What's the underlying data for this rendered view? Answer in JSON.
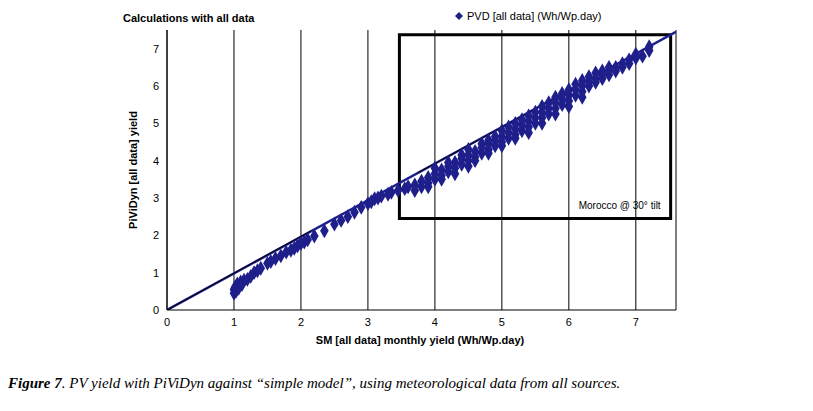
{
  "chart_data": {
    "type": "scatter",
    "title": "Calculations with all data",
    "x_label": "SM [all data] monthly yield (Wh/Wp.day)",
    "y_label": "PiViDyn [all data] yield",
    "caption": "Figure 7. PV yield with PiViDyn against “simple model”, using meteorological data from all sources.",
    "xlim": [
      0,
      7.6
    ],
    "ylim": [
      0,
      7.5
    ],
    "xticks": [
      0,
      1,
      2,
      3,
      4,
      5,
      6,
      7
    ],
    "yticks": [
      0,
      1,
      2,
      3,
      4,
      5,
      6,
      7
    ],
    "grid": true,
    "legend": "top",
    "series": [
      {
        "name": "PVD [all data] (Wh/Wp.day)",
        "color": "#1f1f8c",
        "marker": "diamond",
        "x": [
          1.0,
          1.0,
          1.02,
          1.03,
          1.05,
          1.07,
          1.1,
          1.12,
          1.15,
          1.2,
          1.25,
          1.3,
          1.35,
          1.4,
          1.5,
          1.55,
          1.62,
          1.7,
          1.78,
          1.85,
          1.9,
          1.95,
          2.0,
          2.05,
          2.1,
          2.2,
          2.35,
          2.5,
          2.6,
          2.7,
          2.8,
          2.9,
          3.0,
          3.05,
          3.1,
          3.15,
          3.2,
          3.3,
          3.35,
          3.45,
          3.55,
          3.6,
          3.7,
          3.7,
          3.8,
          3.8,
          3.9,
          3.9,
          3.9,
          4.0,
          4.0,
          4.0,
          4.1,
          4.1,
          4.1,
          4.2,
          4.2,
          4.2,
          4.3,
          4.3,
          4.3,
          4.4,
          4.4,
          4.4,
          4.5,
          4.5,
          4.5,
          4.5,
          4.6,
          4.6,
          4.6,
          4.7,
          4.7,
          4.7,
          4.8,
          4.8,
          4.8,
          4.8,
          4.9,
          4.9,
          4.9,
          5.0,
          5.0,
          5.0,
          5.0,
          5.1,
          5.1,
          5.1,
          5.2,
          5.2,
          5.2,
          5.2,
          5.3,
          5.3,
          5.3,
          5.4,
          5.4,
          5.4,
          5.4,
          5.5,
          5.5,
          5.5,
          5.6,
          5.6,
          5.6,
          5.6,
          5.7,
          5.7,
          5.7,
          5.8,
          5.8,
          5.8,
          5.8,
          5.9,
          5.9,
          5.9,
          6.0,
          6.0,
          6.0,
          6.0,
          6.1,
          6.1,
          6.1,
          6.2,
          6.2,
          6.2,
          6.2,
          6.3,
          6.3,
          6.3,
          6.4,
          6.4,
          6.4,
          6.5,
          6.5,
          6.5,
          6.6,
          6.6,
          6.6,
          6.7,
          6.7,
          6.8,
          6.8,
          6.9,
          6.9,
          7.0,
          7.0,
          7.1,
          7.2,
          7.2
        ],
        "values": [
          0.45,
          0.55,
          0.62,
          0.5,
          0.7,
          0.58,
          0.75,
          0.68,
          0.8,
          0.82,
          0.9,
          1.0,
          1.05,
          1.12,
          1.25,
          1.3,
          1.38,
          1.45,
          1.55,
          1.6,
          1.65,
          1.72,
          1.78,
          1.82,
          1.88,
          1.98,
          2.12,
          2.3,
          2.4,
          2.5,
          2.62,
          2.75,
          2.85,
          2.9,
          2.98,
          3.0,
          3.05,
          3.1,
          3.15,
          3.2,
          3.25,
          3.3,
          3.2,
          3.35,
          3.3,
          3.45,
          3.4,
          3.55,
          3.3,
          3.5,
          3.65,
          3.8,
          3.6,
          3.75,
          3.5,
          3.7,
          3.85,
          3.95,
          3.8,
          3.95,
          3.65,
          3.9,
          4.05,
          4.15,
          4.0,
          4.15,
          3.85,
          4.3,
          4.1,
          4.25,
          4.0,
          4.2,
          4.35,
          4.45,
          4.3,
          4.45,
          4.2,
          4.55,
          4.4,
          4.55,
          4.65,
          4.5,
          4.65,
          4.8,
          4.4,
          4.6,
          4.75,
          4.9,
          4.7,
          4.85,
          5.0,
          4.6,
          4.8,
          4.95,
          5.1,
          4.9,
          5.05,
          5.2,
          4.75,
          5.0,
          5.15,
          5.3,
          5.15,
          5.3,
          5.45,
          5.0,
          5.25,
          5.4,
          5.55,
          5.4,
          5.55,
          5.7,
          5.25,
          5.5,
          5.65,
          5.8,
          5.6,
          5.75,
          5.9,
          5.45,
          5.75,
          5.9,
          6.05,
          5.85,
          6.0,
          6.15,
          5.7,
          6.0,
          6.1,
          6.25,
          6.1,
          6.2,
          6.35,
          6.2,
          6.3,
          6.4,
          6.3,
          6.4,
          6.5,
          6.4,
          6.5,
          6.5,
          6.6,
          6.6,
          6.7,
          6.75,
          6.85,
          6.8,
          6.95,
          7.05
        ]
      }
    ],
    "reference_lines": [
      {
        "x": [
          0,
          7.6
        ],
        "y": [
          0,
          7.45
        ],
        "color": "#1f1f8c"
      },
      {
        "x": [
          0,
          2.15
        ],
        "y": [
          0,
          2.12
        ],
        "color": "#000000"
      },
      {
        "x": [
          3.74,
          5.93
        ],
        "y": [
          3.67,
          5.8
        ],
        "color": "#000000"
      }
    ],
    "annotations": [
      {
        "text": "Morocco @ 30° tilt",
        "x": [
          3.47,
          7.52
        ],
        "y": [
          2.45,
          7.37
        ],
        "color": "#000000"
      }
    ]
  }
}
